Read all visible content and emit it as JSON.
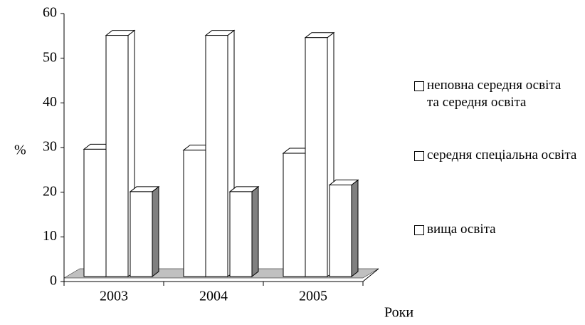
{
  "chart_data": {
    "type": "bar3d",
    "categories": [
      "2003",
      "2004",
      "2005"
    ],
    "series": [
      {
        "name": "неповна середня освіта та середня освіта",
        "color": "#ffffff",
        "values": [
          28.5,
          28.3,
          27.6
        ]
      },
      {
        "name": "середня спеціальна освіта",
        "color": "#ffffff",
        "values": [
          54,
          54,
          53.5
        ]
      },
      {
        "name": "вища освіта",
        "color": "#ffffff",
        "values": [
          19,
          19,
          20.5
        ]
      }
    ],
    "ylabel": "%",
    "xlabel": "Роки",
    "ylim": [
      0,
      60
    ],
    "yticks": [
      0,
      10,
      20,
      30,
      40,
      50,
      60
    ],
    "legend": "right"
  }
}
